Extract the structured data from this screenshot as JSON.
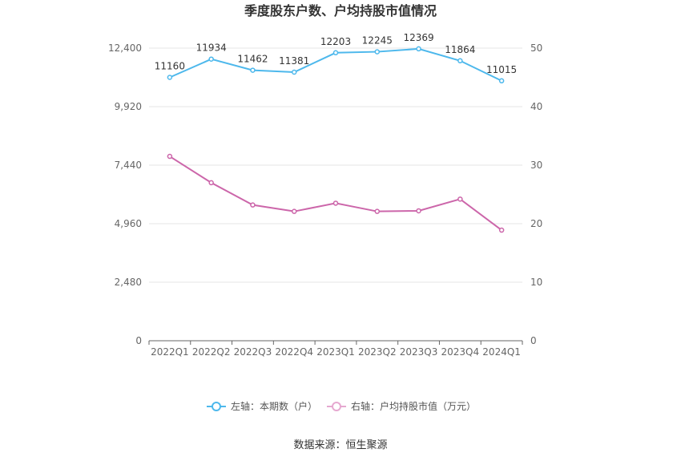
{
  "chart_data": {
    "type": "line",
    "title": "季度股东户数、户均持股市值情况",
    "categories": [
      "2022Q1",
      "2022Q2",
      "2022Q3",
      "2022Q4",
      "2023Q1",
      "2023Q2",
      "2023Q3",
      "2023Q4",
      "2024Q1"
    ],
    "left_axis": {
      "ticks": [
        "0",
        "2,480",
        "4,960",
        "7,440",
        "9,920",
        "12,400"
      ],
      "ylim": [
        0,
        12400
      ]
    },
    "right_axis": {
      "ticks": [
        "0",
        "10",
        "20",
        "30",
        "40",
        "50"
      ],
      "ylim": [
        0,
        50
      ]
    },
    "series": [
      {
        "name": "左轴：本期数（户）",
        "axis": "left",
        "color": "#4db8ec",
        "values": [
          11160,
          11934,
          11462,
          11381,
          12203,
          12245,
          12369,
          11864,
          11015
        ],
        "labels": [
          "11160",
          "11934",
          "11462",
          "11381",
          "12203",
          "12245",
          "12369",
          "11864",
          "11015"
        ]
      },
      {
        "name": "右轴：户均持股市值（万元）",
        "axis": "right",
        "color": "#cc66aa",
        "values": [
          31.5,
          27.0,
          23.2,
          22.1,
          23.5,
          22.1,
          22.2,
          24.2,
          18.9
        ]
      }
    ],
    "grid": true,
    "legend_position": "bottom"
  },
  "source": "数据来源：恒生聚源"
}
